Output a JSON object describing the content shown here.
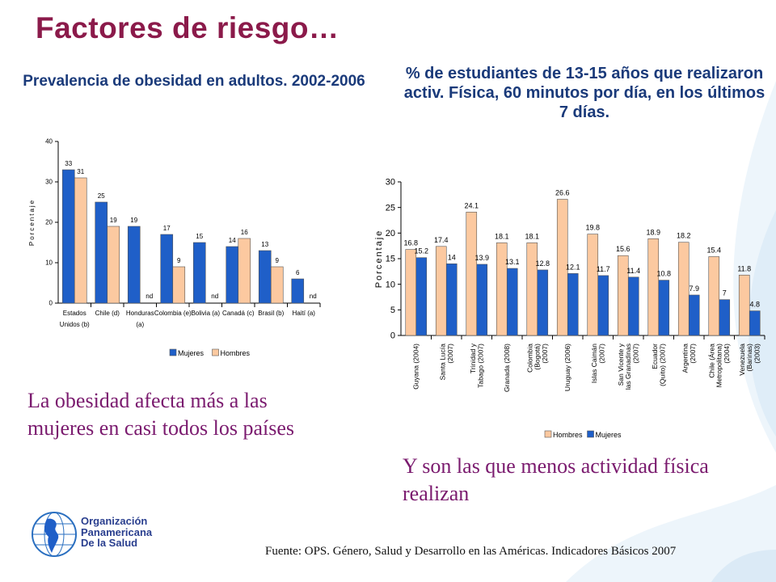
{
  "title": "Factores de riesgo…",
  "org_name": [
    "Organización",
    "Panamericana",
    "De la Salud"
  ],
  "note_left": "La obesidad afecta más a las mujeres en casi todos los países",
  "note_right": "Y son las que menos actividad física realizan",
  "source": "Fuente: OPS. Género, Salud y Desarrollo en las Américas. Indicadores Básicos 2007",
  "colors": {
    "title": "#8b1a4a",
    "women": "#1f5fc8",
    "men": "#fcc9a0",
    "note": "#7a1a6e",
    "chart_title": "#1a3a7a"
  },
  "chart_data": [
    {
      "type": "bar",
      "title": "Prevalencia de obesidad en adultos. 2002-2006",
      "ylabel": "Porcentaje",
      "ylim": [
        0,
        40
      ],
      "yticks": [
        0,
        10,
        20,
        30,
        40
      ],
      "categories": [
        [
          "Estados",
          "Unidos (b)"
        ],
        [
          "Chile (d)"
        ],
        [
          "Honduras",
          "(a)"
        ],
        [
          "Colombia (e)"
        ],
        [
          "Bolivia (a)"
        ],
        [
          "Canadá (c)"
        ],
        [
          "Brasil (b)"
        ],
        [
          "Haití (a)"
        ]
      ],
      "series": [
        {
          "name": "Mujeres",
          "color": "#1f5fc8",
          "values": [
            33,
            25,
            19,
            17,
            15,
            14,
            13,
            6
          ],
          "labels": [
            "33",
            "25",
            "19",
            "17",
            "15",
            "14",
            "13",
            "6"
          ]
        },
        {
          "name": "Hombres",
          "color": "#fcc9a0",
          "values": [
            31,
            19,
            null,
            9,
            null,
            16,
            9,
            null
          ],
          "labels": [
            "31",
            "19",
            "nd",
            "9",
            "nd",
            "16",
            "9",
            "nd"
          ]
        }
      ],
      "legend": "bottom"
    },
    {
      "type": "bar",
      "title": "% de estudiantes de 13-15 años que realizaron activ. Física, 60 minutos por día, en los últimos 7 días.",
      "ylabel": "Porcentaje",
      "ylim": [
        0,
        30
      ],
      "yticks": [
        0,
        5,
        10,
        15,
        20,
        25,
        30
      ],
      "categories": [
        [
          "Guyana (2004)"
        ],
        [
          "Santa Lucía",
          "(2007)"
        ],
        [
          "Trinidad y",
          "Tabago (2007)"
        ],
        [
          "Granada (2008)"
        ],
        [
          "Colombia",
          "(Bogotá)",
          "(2007)"
        ],
        [
          "Uruguay (2006)"
        ],
        [
          "Islas Caimán",
          "(2007)"
        ],
        [
          "San Vicente y",
          "las Granadinas",
          "(2007)"
        ],
        [
          "Ecuador",
          "(Quito) (2007)"
        ],
        [
          "Argentina",
          "(2007)"
        ],
        [
          "Chile (Área",
          "Metropolitana)",
          "(2004)"
        ],
        [
          "Venezuela",
          "(Barinas)",
          "(2003)"
        ]
      ],
      "series": [
        {
          "name": "Hombres",
          "color": "#fcc9a0",
          "values": [
            16.8,
            17.4,
            24.1,
            18.1,
            18.1,
            26.6,
            19.8,
            15.6,
            18.9,
            18.2,
            15.4,
            11.8
          ],
          "labels": [
            "16.8",
            "17.4",
            "24.1",
            "18.1",
            "18.1",
            "26.6",
            "19.8",
            "15.6",
            "18.9",
            "18.2",
            "15.4",
            "11.8"
          ]
        },
        {
          "name": "Mujeres",
          "color": "#1f5fc8",
          "values": [
            15.2,
            14,
            13.9,
            13.1,
            12.8,
            12.1,
            11.7,
            11.4,
            10.8,
            7.9,
            7,
            4.8
          ],
          "labels": [
            "15.2",
            "14",
            "13.9",
            "13.1",
            "12.8",
            "12.1",
            "11.7",
            "11.4",
            "10.8",
            "7.9",
            "7",
            "4.8"
          ]
        }
      ],
      "legend": "bottom"
    }
  ]
}
